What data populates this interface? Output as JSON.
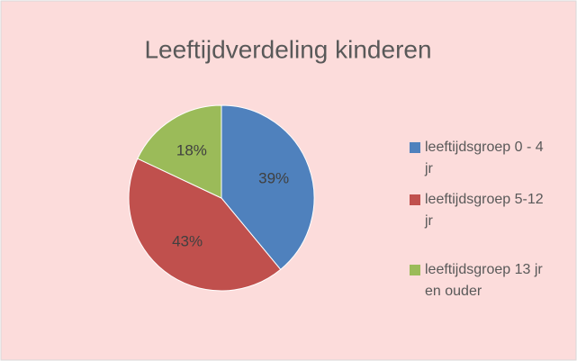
{
  "chart_data": {
    "type": "pie",
    "title": "Leeftijdverdeling kinderen",
    "categories": [
      "leeftijdsgroep 0 - 4 jr",
      "leeftijdsgroep 5-12 jr",
      "leeftijdsgroep 13 jr en ouder"
    ],
    "values": [
      39,
      43,
      18
    ],
    "value_labels": [
      "39%",
      "43%",
      "18%"
    ],
    "colors": [
      "#4f81bd",
      "#c0504d",
      "#9bbb59"
    ],
    "legend": "right"
  }
}
